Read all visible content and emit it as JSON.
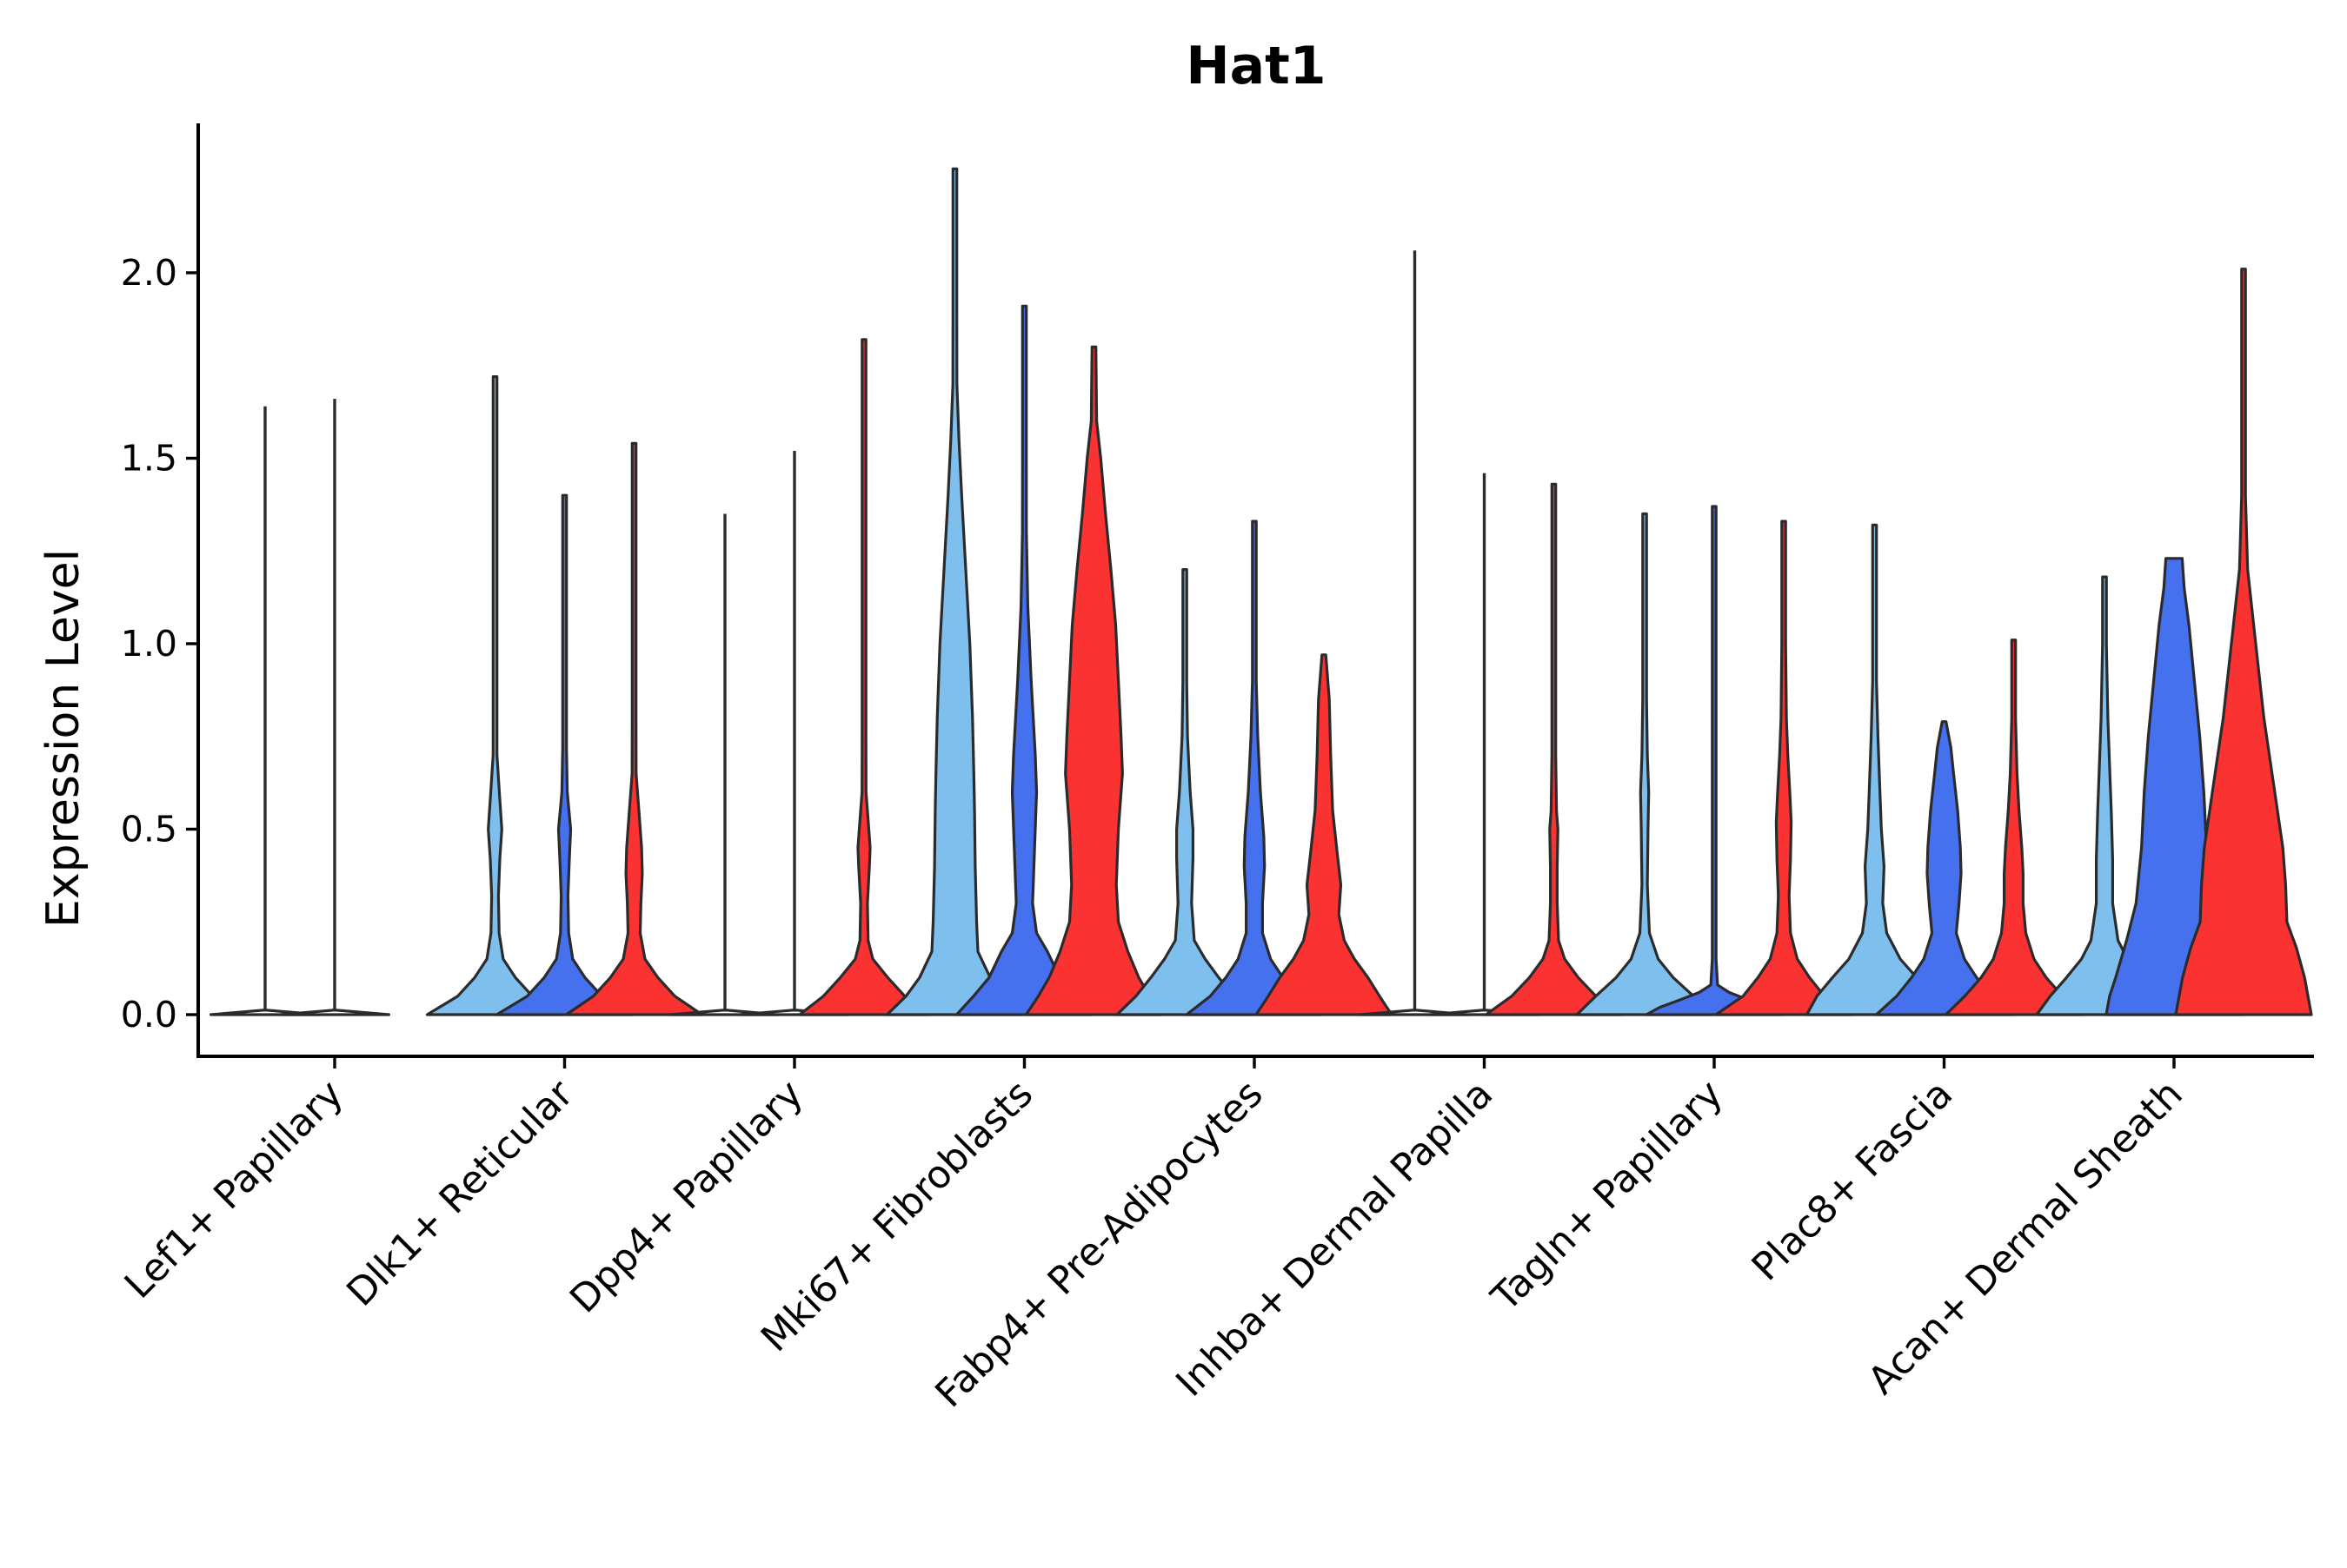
{
  "chart_data": {
    "type": "violin",
    "title": "Hat1",
    "xlabel": "",
    "ylabel": "Expression Level",
    "ylim": [
      -0.12,
      2.4
    ],
    "yticks": [
      0.0,
      0.5,
      1.0,
      1.5,
      2.0
    ],
    "ytick_labels": [
      "0.0",
      "0.5",
      "1.0",
      "1.5",
      "2.0"
    ],
    "grid": false,
    "legend": "none",
    "series": [
      {
        "name": "group-1",
        "color": "#7fbfee"
      },
      {
        "name": "group-2",
        "color": "#4570ee"
      },
      {
        "name": "group-3",
        "color": "#fa3232"
      }
    ],
    "categories": [
      "Lef1+ Papillary",
      "Dlk1+ Reticular",
      "Dpp4+ Papillary",
      "Mki67+ Fibroblasts",
      "Fabp4+ Pre-Adipocytes",
      "Inhba+ Dermal Papilla",
      "Tagln+ Papillary",
      "Plac8+ Fascia",
      "Acan+ Dermal Sheath"
    ],
    "violins": [
      {
        "category": "Lef1+ Papillary",
        "series": "group-1",
        "max": 1.64,
        "profile": [
          [
            0,
            0.8
          ]
        ]
      },
      {
        "category": "Lef1+ Papillary",
        "series": "group-2",
        "max": 1.66,
        "profile": [
          [
            0,
            0.8
          ]
        ]
      },
      {
        "category": "Dlk1+ Reticular",
        "series": "group-1",
        "max": 1.72,
        "profile": [
          [
            0,
            1.0
          ],
          [
            0.05,
            0.55
          ],
          [
            0.1,
            0.3
          ],
          [
            0.15,
            0.12
          ],
          [
            0.22,
            0.06
          ],
          [
            0.32,
            0.05
          ],
          [
            0.42,
            0.07
          ],
          [
            0.5,
            0.1
          ],
          [
            0.58,
            0.07
          ],
          [
            0.7,
            0.02
          ],
          [
            0.85,
            0.01
          ],
          [
            1.0,
            0.005
          ],
          [
            1.72,
            0.004
          ]
        ]
      },
      {
        "category": "Dlk1+ Reticular",
        "series": "group-2",
        "max": 1.4,
        "profile": [
          [
            0,
            1.0
          ],
          [
            0.05,
            0.55
          ],
          [
            0.1,
            0.3
          ],
          [
            0.15,
            0.12
          ],
          [
            0.22,
            0.06
          ],
          [
            0.32,
            0.05
          ],
          [
            0.42,
            0.07
          ],
          [
            0.5,
            0.09
          ],
          [
            0.6,
            0.04
          ],
          [
            0.72,
            0.02
          ],
          [
            0.9,
            0.01
          ],
          [
            1.4,
            0.004
          ]
        ]
      },
      {
        "category": "Dlk1+ Reticular",
        "series": "group-3",
        "max": 1.54,
        "profile": [
          [
            0,
            1.0
          ],
          [
            0.05,
            0.6
          ],
          [
            0.1,
            0.35
          ],
          [
            0.15,
            0.16
          ],
          [
            0.22,
            0.09
          ],
          [
            0.3,
            0.1
          ],
          [
            0.38,
            0.12
          ],
          [
            0.45,
            0.11
          ],
          [
            0.55,
            0.07
          ],
          [
            0.65,
            0.03
          ],
          [
            0.8,
            0.015
          ],
          [
            1.0,
            0.008
          ],
          [
            1.54,
            0.004
          ]
        ]
      },
      {
        "category": "Dpp4+ Papillary",
        "series": "group-1",
        "max": 1.35,
        "profile": [
          [
            0,
            0.8
          ]
        ]
      },
      {
        "category": "Dpp4+ Papillary",
        "series": "group-2",
        "max": 1.52,
        "profile": [
          [
            0,
            0.8
          ]
        ]
      },
      {
        "category": "Dpp4+ Papillary",
        "series": "group-3",
        "max": 1.82,
        "profile": [
          [
            0,
            0.95
          ],
          [
            0.05,
            0.6
          ],
          [
            0.1,
            0.35
          ],
          [
            0.15,
            0.13
          ],
          [
            0.2,
            0.06
          ],
          [
            0.3,
            0.05
          ],
          [
            0.4,
            0.08
          ],
          [
            0.45,
            0.09
          ],
          [
            0.5,
            0.07
          ],
          [
            0.6,
            0.03
          ],
          [
            0.75,
            0.012
          ],
          [
            1.0,
            0.006
          ],
          [
            1.82,
            0.004
          ]
        ]
      },
      {
        "category": "Mki67+ Fibroblasts",
        "series": "group-1",
        "max": 2.28,
        "profile": [
          [
            0,
            1.0
          ],
          [
            0.05,
            0.72
          ],
          [
            0.1,
            0.52
          ],
          [
            0.17,
            0.34
          ],
          [
            0.25,
            0.32
          ],
          [
            0.4,
            0.3
          ],
          [
            0.55,
            0.29
          ],
          [
            0.65,
            0.28
          ],
          [
            0.8,
            0.26
          ],
          [
            1.0,
            0.22
          ],
          [
            1.2,
            0.16
          ],
          [
            1.4,
            0.1
          ],
          [
            1.55,
            0.06
          ],
          [
            1.7,
            0.03
          ],
          [
            1.9,
            0.012
          ],
          [
            2.28,
            0.004
          ]
        ]
      },
      {
        "category": "Mki67+ Fibroblasts",
        "series": "group-2",
        "max": 1.91,
        "profile": [
          [
            0,
            1.0
          ],
          [
            0.05,
            0.75
          ],
          [
            0.1,
            0.52
          ],
          [
            0.17,
            0.34
          ],
          [
            0.22,
            0.18
          ],
          [
            0.3,
            0.12
          ],
          [
            0.45,
            0.15
          ],
          [
            0.6,
            0.18
          ],
          [
            0.7,
            0.16
          ],
          [
            0.9,
            0.1
          ],
          [
            1.1,
            0.05
          ],
          [
            1.3,
            0.03
          ],
          [
            1.5,
            0.015
          ],
          [
            1.91,
            0.004
          ]
        ]
      },
      {
        "category": "Mki67+ Fibroblasts",
        "series": "group-3",
        "max": 1.8,
        "profile": [
          [
            0,
            1.0
          ],
          [
            0.05,
            0.82
          ],
          [
            0.1,
            0.66
          ],
          [
            0.17,
            0.5
          ],
          [
            0.25,
            0.36
          ],
          [
            0.35,
            0.33
          ],
          [
            0.5,
            0.36
          ],
          [
            0.65,
            0.42
          ],
          [
            0.75,
            0.4
          ],
          [
            0.9,
            0.36
          ],
          [
            1.05,
            0.32
          ],
          [
            1.2,
            0.25
          ],
          [
            1.35,
            0.17
          ],
          [
            1.5,
            0.1
          ],
          [
            1.6,
            0.04
          ],
          [
            1.8,
            0.004
          ]
        ]
      },
      {
        "category": "Fabp4+ Pre-Adipocytes",
        "series": "group-1",
        "max": 1.2,
        "profile": [
          [
            0,
            1.0
          ],
          [
            0.05,
            0.72
          ],
          [
            0.1,
            0.5
          ],
          [
            0.15,
            0.3
          ],
          [
            0.2,
            0.14
          ],
          [
            0.3,
            0.1
          ],
          [
            0.42,
            0.12
          ],
          [
            0.5,
            0.12
          ],
          [
            0.6,
            0.08
          ],
          [
            0.75,
            0.04
          ],
          [
            0.9,
            0.015
          ],
          [
            1.2,
            0.004
          ]
        ]
      },
      {
        "category": "Fabp4+ Pre-Adipocytes",
        "series": "group-2",
        "max": 1.33,
        "profile": [
          [
            0,
            1.0
          ],
          [
            0.05,
            0.65
          ],
          [
            0.1,
            0.42
          ],
          [
            0.15,
            0.24
          ],
          [
            0.22,
            0.12
          ],
          [
            0.3,
            0.12
          ],
          [
            0.4,
            0.15
          ],
          [
            0.48,
            0.14
          ],
          [
            0.6,
            0.09
          ],
          [
            0.75,
            0.05
          ],
          [
            0.9,
            0.02
          ],
          [
            1.33,
            0.004
          ]
        ]
      },
      {
        "category": "Fabp4+ Pre-Adipocytes",
        "series": "group-3",
        "max": 0.97,
        "profile": [
          [
            0,
            1.0
          ],
          [
            0.05,
            0.82
          ],
          [
            0.1,
            0.65
          ],
          [
            0.15,
            0.45
          ],
          [
            0.2,
            0.3
          ],
          [
            0.27,
            0.22
          ],
          [
            0.35,
            0.25
          ],
          [
            0.43,
            0.2
          ],
          [
            0.55,
            0.13
          ],
          [
            0.7,
            0.1
          ],
          [
            0.85,
            0.08
          ],
          [
            0.97,
            0.004
          ]
        ]
      },
      {
        "category": "Inhba+ Dermal Papilla",
        "series": "group-1",
        "max": 2.06,
        "profile": [
          [
            0,
            0.8
          ]
        ]
      },
      {
        "category": "Inhba+ Dermal Papilla",
        "series": "group-2",
        "max": 1.46,
        "profile": [
          [
            0,
            0.8
          ]
        ]
      },
      {
        "category": "Inhba+ Dermal Papilla",
        "series": "group-3",
        "max": 1.43,
        "profile": [
          [
            0,
            1.0
          ],
          [
            0.05,
            0.62
          ],
          [
            0.1,
            0.36
          ],
          [
            0.15,
            0.16
          ],
          [
            0.2,
            0.07
          ],
          [
            0.3,
            0.05
          ],
          [
            0.4,
            0.05
          ],
          [
            0.5,
            0.06
          ],
          [
            0.55,
            0.04
          ],
          [
            0.7,
            0.02
          ],
          [
            0.9,
            0.01
          ],
          [
            1.43,
            0.004
          ]
        ]
      },
      {
        "category": "Tagln+ Papillary",
        "series": "group-1",
        "max": 1.35,
        "profile": [
          [
            0,
            1.0
          ],
          [
            0.05,
            0.72
          ],
          [
            0.1,
            0.42
          ],
          [
            0.15,
            0.2
          ],
          [
            0.22,
            0.07
          ],
          [
            0.35,
            0.04
          ],
          [
            0.5,
            0.05
          ],
          [
            0.6,
            0.06
          ],
          [
            0.7,
            0.04
          ],
          [
            0.85,
            0.02
          ],
          [
            1.0,
            0.01
          ],
          [
            1.35,
            0.004
          ]
        ]
      },
      {
        "category": "Tagln+ Papillary",
        "series": "group-2",
        "max": 1.37,
        "profile": [
          [
            0,
            1.0
          ],
          [
            0.02,
            0.8
          ],
          [
            0.04,
            0.5
          ],
          [
            0.06,
            0.22
          ],
          [
            0.08,
            0.05
          ],
          [
            0.15,
            0.02
          ],
          [
            0.3,
            0.015
          ],
          [
            0.5,
            0.015
          ],
          [
            0.7,
            0.01
          ],
          [
            1.0,
            0.005
          ],
          [
            1.37,
            0.004
          ]
        ]
      },
      {
        "category": "Tagln+ Papillary",
        "series": "group-3",
        "max": 1.33,
        "profile": [
          [
            0,
            1.0
          ],
          [
            0.05,
            0.6
          ],
          [
            0.1,
            0.38
          ],
          [
            0.15,
            0.2
          ],
          [
            0.22,
            0.1
          ],
          [
            0.32,
            0.08
          ],
          [
            0.42,
            0.1
          ],
          [
            0.52,
            0.11
          ],
          [
            0.6,
            0.09
          ],
          [
            0.7,
            0.06
          ],
          [
            0.8,
            0.04
          ],
          [
            1.0,
            0.015
          ],
          [
            1.33,
            0.004
          ]
        ]
      },
      {
        "category": "Plac8+ Fascia",
        "series": "group-1",
        "max": 1.32,
        "profile": [
          [
            0,
            1.0
          ],
          [
            0.05,
            0.85
          ],
          [
            0.1,
            0.62
          ],
          [
            0.15,
            0.38
          ],
          [
            0.22,
            0.18
          ],
          [
            0.3,
            0.12
          ],
          [
            0.4,
            0.14
          ],
          [
            0.5,
            0.1
          ],
          [
            0.6,
            0.08
          ],
          [
            0.75,
            0.05
          ],
          [
            0.9,
            0.02
          ],
          [
            1.32,
            0.004
          ]
        ]
      },
      {
        "category": "Plac8+ Fascia",
        "series": "group-2",
        "max": 0.79,
        "profile": [
          [
            0,
            1.0
          ],
          [
            0.05,
            0.7
          ],
          [
            0.1,
            0.48
          ],
          [
            0.15,
            0.3
          ],
          [
            0.22,
            0.18
          ],
          [
            0.3,
            0.22
          ],
          [
            0.38,
            0.25
          ],
          [
            0.45,
            0.24
          ],
          [
            0.55,
            0.2
          ],
          [
            0.65,
            0.14
          ],
          [
            0.72,
            0.1
          ],
          [
            0.79,
            0.004
          ]
        ]
      },
      {
        "category": "Plac8+ Fascia",
        "series": "group-3",
        "max": 1.01,
        "profile": [
          [
            0,
            1.0
          ],
          [
            0.05,
            0.72
          ],
          [
            0.1,
            0.48
          ],
          [
            0.15,
            0.3
          ],
          [
            0.22,
            0.18
          ],
          [
            0.3,
            0.14
          ],
          [
            0.38,
            0.14
          ],
          [
            0.45,
            0.12
          ],
          [
            0.55,
            0.08
          ],
          [
            0.65,
            0.05
          ],
          [
            0.8,
            0.02
          ],
          [
            1.01,
            0.004
          ]
        ]
      },
      {
        "category": "Acan+ Dermal Sheath",
        "series": "group-1",
        "max": 1.18,
        "profile": [
          [
            0,
            1.0
          ],
          [
            0.05,
            0.8
          ],
          [
            0.1,
            0.56
          ],
          [
            0.15,
            0.34
          ],
          [
            0.2,
            0.2
          ],
          [
            0.3,
            0.12
          ],
          [
            0.42,
            0.12
          ],
          [
            0.55,
            0.1
          ],
          [
            0.65,
            0.08
          ],
          [
            0.8,
            0.05
          ],
          [
            1.0,
            0.02
          ],
          [
            1.18,
            0.004
          ]
        ]
      },
      {
        "category": "Acan+ Dermal Sheath",
        "series": "group-2",
        "max": 1.23,
        "profile": [
          [
            0,
            1.0
          ],
          [
            0.05,
            0.95
          ],
          [
            0.1,
            0.86
          ],
          [
            0.2,
            0.7
          ],
          [
            0.3,
            0.56
          ],
          [
            0.45,
            0.48
          ],
          [
            0.6,
            0.44
          ],
          [
            0.75,
            0.38
          ],
          [
            0.9,
            0.3
          ],
          [
            1.05,
            0.22
          ],
          [
            1.15,
            0.15
          ],
          [
            1.23,
            0.12
          ]
        ]
      },
      {
        "category": "Acan+ Dermal Sheath",
        "series": "group-3",
        "max": 2.01,
        "profile": [
          [
            0,
            1.0
          ],
          [
            0.05,
            0.95
          ],
          [
            0.1,
            0.9
          ],
          [
            0.18,
            0.78
          ],
          [
            0.25,
            0.64
          ],
          [
            0.35,
            0.62
          ],
          [
            0.45,
            0.58
          ],
          [
            0.6,
            0.46
          ],
          [
            0.8,
            0.3
          ],
          [
            1.0,
            0.18
          ],
          [
            1.2,
            0.06
          ],
          [
            1.4,
            0.02
          ],
          [
            1.6,
            0.01
          ],
          [
            2.01,
            0.004
          ]
        ]
      }
    ]
  }
}
